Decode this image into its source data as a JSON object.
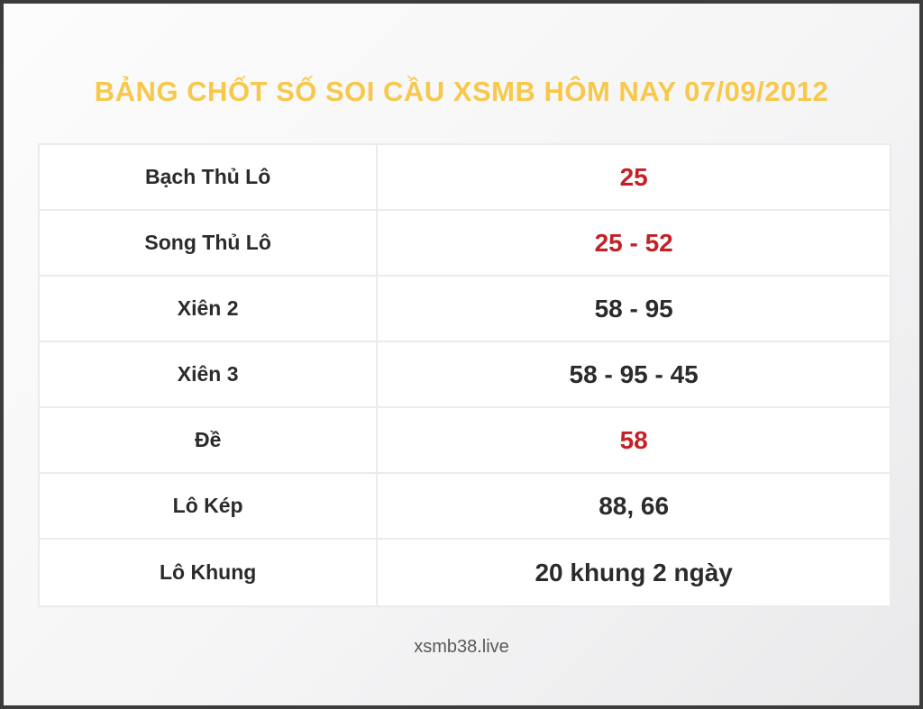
{
  "header": {
    "title": "BẢNG CHỐT SỐ SOI CẦU XSMB HÔM NAY 07/09/2012"
  },
  "table": {
    "rows": [
      {
        "label": "Bạch Thủ Lô",
        "value": "25",
        "highlight": true
      },
      {
        "label": "Song Thủ Lô",
        "value": "25 - 52",
        "highlight": true
      },
      {
        "label": "Xiên 2",
        "value": "58 - 95",
        "highlight": false
      },
      {
        "label": "Xiên 3",
        "value": "58 - 95 - 45",
        "highlight": false
      },
      {
        "label": "Đề",
        "value": "58",
        "highlight": true
      },
      {
        "label": "Lô Kép",
        "value": "88, 66",
        "highlight": false
      },
      {
        "label": "Lô Khung",
        "value": "20 khung 2 ngày",
        "highlight": false
      }
    ]
  },
  "footer": {
    "site": "xsmb38.live"
  },
  "colors": {
    "title_yellow": "#f7c84b",
    "value_red": "#c32127",
    "text_dark": "#2b2b2b",
    "footer_gray": "#595959",
    "frame_dark": "#3c3c3c",
    "grid_line": "#ebebeb"
  }
}
